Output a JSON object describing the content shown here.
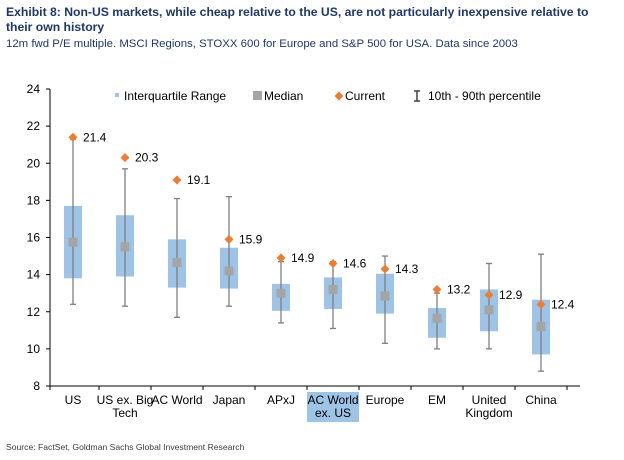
{
  "title": "Exhibit 8: Non-US markets, while cheap relative to the US, are not particularly inexpensive relative to their own history",
  "subtitle": "12m fwd P/E multiple. MSCI Regions, STOXX 600 for Europe and S&P 500 for USA. Data since 2003",
  "source": "Source: FactSet, Goldman Sachs Global Investment Research",
  "colors": {
    "iqr": "#9dc3e6",
    "median": "#a5a5a5",
    "current": "#ed7d31",
    "whisker": "#7f7f7f",
    "axis": "#000000",
    "highlight_bg": "#9dc3e6"
  },
  "chart_data": {
    "type": "box",
    "ylim": [
      8,
      24
    ],
    "yticks": [
      8,
      10,
      12,
      14,
      16,
      18,
      20,
      22,
      24
    ],
    "legend": {
      "placement": "top",
      "items": [
        {
          "key": "iqr",
          "label": "Interquartile Range"
        },
        {
          "key": "median",
          "label": "Median"
        },
        {
          "key": "current",
          "label": "Current"
        },
        {
          "key": "range",
          "label": "10th - 90th percentile"
        }
      ]
    },
    "categories": [
      {
        "label": [
          "US"
        ],
        "p10": 12.4,
        "q1": 13.8,
        "median": 15.75,
        "q3": 17.7,
        "p90": 21.3,
        "current": 21.4,
        "current_label": "21.4",
        "highlight": false
      },
      {
        "label": [
          "US ex. Big",
          "Tech"
        ],
        "p10": 12.3,
        "q1": 13.9,
        "median": 15.5,
        "q3": 17.2,
        "p90": 19.7,
        "current": 20.3,
        "current_label": "20.3",
        "highlight": false
      },
      {
        "label": [
          "AC World"
        ],
        "p10": 11.7,
        "q1": 13.3,
        "median": 14.65,
        "q3": 15.9,
        "p90": 18.1,
        "current": 19.1,
        "current_label": "19.1",
        "highlight": false
      },
      {
        "label": [
          "Japan"
        ],
        "p10": 12.3,
        "q1": 13.25,
        "median": 14.2,
        "q3": 15.45,
        "p90": 18.2,
        "current": 15.9,
        "current_label": "15.9",
        "highlight": false
      },
      {
        "label": [
          "APxJ"
        ],
        "p10": 11.4,
        "q1": 12.05,
        "median": 13.0,
        "q3": 13.5,
        "p90": 14.7,
        "current": 14.9,
        "current_label": "14.9",
        "highlight": false
      },
      {
        "label": [
          "AC World",
          "ex. US"
        ],
        "p10": 11.1,
        "q1": 12.15,
        "median": 13.2,
        "q3": 13.85,
        "p90": 14.7,
        "current": 14.6,
        "current_label": "14.6",
        "highlight": true
      },
      {
        "label": [
          "Europe"
        ],
        "p10": 10.3,
        "q1": 11.9,
        "median": 12.85,
        "q3": 14.05,
        "p90": 15.0,
        "current": 14.3,
        "current_label": "14.3",
        "highlight": false
      },
      {
        "label": [
          "EM"
        ],
        "p10": 10.0,
        "q1": 10.6,
        "median": 11.65,
        "q3": 12.2,
        "p90": 13.0,
        "current": 13.2,
        "current_label": "13.2",
        "highlight": false
      },
      {
        "label": [
          "United",
          "Kingdom"
        ],
        "p10": 10.0,
        "q1": 10.95,
        "median": 12.1,
        "q3": 13.2,
        "p90": 14.6,
        "current": 12.9,
        "current_label": "12.9",
        "highlight": false
      },
      {
        "label": [
          "China"
        ],
        "p10": 8.8,
        "q1": 9.7,
        "median": 11.2,
        "q3": 12.65,
        "p90": 15.1,
        "current": 12.4,
        "current_label": "12.4",
        "highlight": false
      }
    ]
  }
}
